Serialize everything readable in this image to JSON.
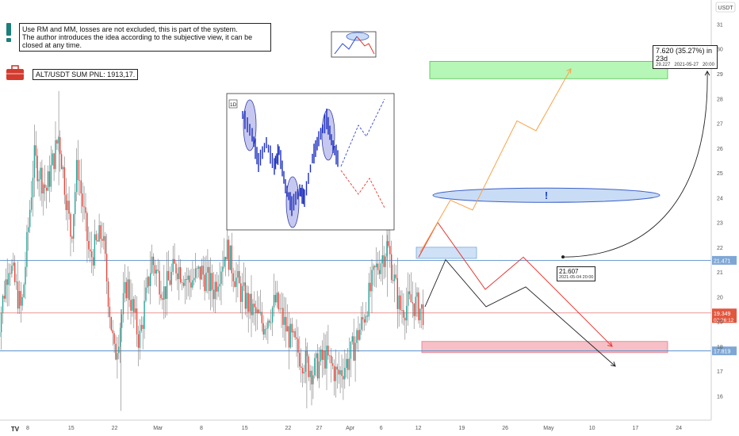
{
  "chart_data": {
    "type": "candlestick",
    "symbol": "ALT/USDT",
    "currency": "USDT",
    "ylim": [
      15.3,
      32.2
    ],
    "y_ticks": [
      16,
      17,
      18,
      19,
      20,
      21,
      22,
      23,
      24,
      25,
      26,
      27,
      28,
      29,
      30,
      31
    ],
    "x_ticks": [
      "8",
      "15",
      "22",
      "Mar",
      "8",
      "15",
      "22",
      "27",
      "Apr",
      "6",
      "12",
      "19",
      "26",
      "May",
      "10",
      "17",
      "24"
    ],
    "x_tick_dates": [
      "2021-02-08",
      "2021-02-15",
      "2021-02-22",
      "2021-03-01",
      "2021-03-08",
      "2021-03-15",
      "2021-03-22",
      "2021-03-27",
      "2021-04-01",
      "2021-04-06",
      "2021-04-12",
      "2021-04-19",
      "2021-04-26",
      "2021-05-03",
      "2021-05-10",
      "2021-05-17",
      "2021-05-24"
    ],
    "price_path": [
      [
        "2021-02-03",
        18.3
      ],
      [
        "2021-02-05",
        21.5
      ],
      [
        "2021-02-07",
        19.4
      ],
      [
        "2021-02-09",
        25.6
      ],
      [
        "2021-02-11",
        24.3
      ],
      [
        "2021-02-13",
        26.5
      ],
      [
        "2021-02-15",
        22.4
      ],
      [
        "2021-02-16",
        25.4
      ],
      [
        "2021-02-18",
        21.5
      ],
      [
        "2021-02-20",
        22.6
      ],
      [
        "2021-02-22",
        17.5
      ],
      [
        "2021-02-24",
        20.6
      ],
      [
        "2021-02-26",
        18.2
      ],
      [
        "2021-02-28",
        21.5
      ],
      [
        "2021-03-02",
        20.2
      ],
      [
        "2021-03-04",
        21.3
      ],
      [
        "2021-03-06",
        20.6
      ],
      [
        "2021-03-08",
        21.0
      ],
      [
        "2021-03-10",
        20.3
      ],
      [
        "2021-03-12",
        22.0
      ],
      [
        "2021-03-14",
        20.4
      ],
      [
        "2021-03-16",
        19.5
      ],
      [
        "2021-03-18",
        18.9
      ],
      [
        "2021-03-20",
        19.8
      ],
      [
        "2021-03-22",
        18.5
      ],
      [
        "2021-03-24",
        17.6
      ],
      [
        "2021-03-26",
        17.0
      ],
      [
        "2021-03-28",
        17.6
      ],
      [
        "2021-03-30",
        16.8
      ],
      [
        "2021-04-01",
        17.6
      ],
      [
        "2021-04-03",
        19.0
      ],
      [
        "2021-04-05",
        21.0
      ],
      [
        "2021-04-07",
        22.1
      ],
      [
        "2021-04-09",
        19.5
      ],
      [
        "2021-04-11",
        19.8
      ],
      [
        "2021-04-13",
        19.35
      ]
    ],
    "annotations": {
      "h_lines": [
        {
          "price": 21.471,
          "label": "21.471",
          "color": "#5b8fc9"
        },
        {
          "price": 17.819,
          "label": "17.819",
          "color": "#5b8fc9"
        },
        {
          "price": 19.349,
          "label": "19.349",
          "sub": "02:26:12",
          "color": "#e05a5a"
        }
      ],
      "zones": [
        {
          "kind": "target",
          "from": 28.8,
          "to": 29.5,
          "color": "#aef5ae"
        },
        {
          "kind": "stop",
          "from": 17.75,
          "to": 18.2,
          "color": "#f6b8c0"
        },
        {
          "kind": "entry",
          "from": 21.55,
          "to": 22.0,
          "color": "#c9def5"
        }
      ],
      "exclamation": "!",
      "measure": {
        "text": "7.620 (35.27%) in 23d",
        "price": "29.227",
        "date": "2021-05-27",
        "time": "20:00"
      },
      "start_point": {
        "price": "21.607",
        "date": "2021-05-04",
        "time": "20:00"
      },
      "inset_timeframe": "1D"
    }
  },
  "notes": {
    "info_line1": "Use RM and MM, losses are not excluded, this is part of the system.",
    "info_line2": "The author introduces the idea according to the subjective view, it can be closed at any time.",
    "pnl": "ALT/USDT SUM PNL: 1913,17.",
    "logo": "TV"
  },
  "colors": {
    "up": "#26a69a",
    "down": "#e8443a",
    "wick": "#7a7a7a",
    "orange": "#f7a34a",
    "red_path": "#e53935",
    "black_path": "#222222",
    "blue_hline": "#5b8fc9",
    "price_line": "#e05a5a"
  }
}
